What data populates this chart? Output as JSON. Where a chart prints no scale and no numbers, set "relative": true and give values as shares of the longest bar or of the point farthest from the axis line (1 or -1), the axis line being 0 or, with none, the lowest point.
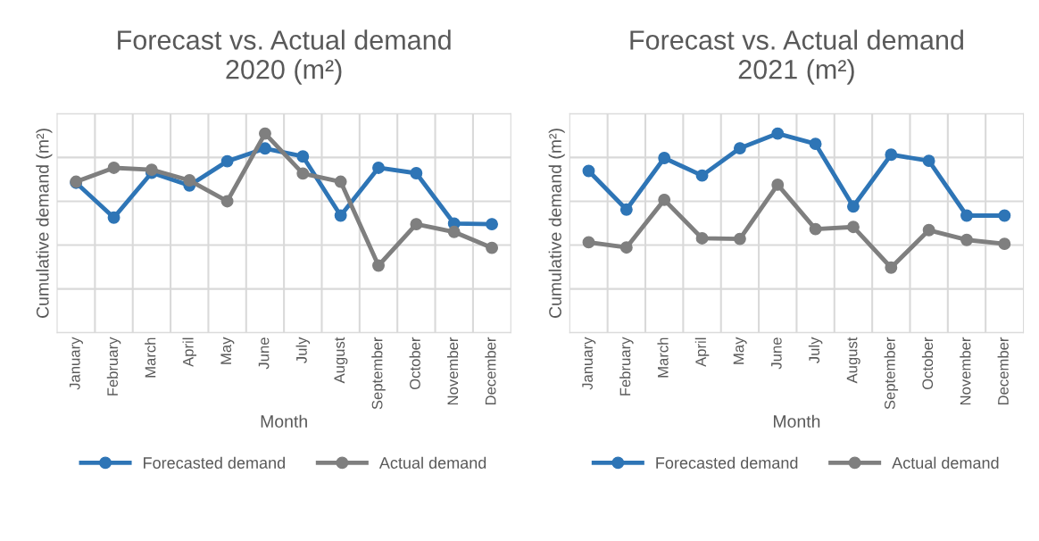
{
  "chart_data": [
    {
      "type": "line",
      "title": "Forecast vs. Actual demand\n2020 (m²)",
      "xlabel": "Month",
      "ylabel": "Cumulative demand (m²)",
      "relative": true,
      "grid": true,
      "legend": "bottom",
      "marker": "circle",
      "line_style": "solid",
      "categories": [
        "January",
        "February",
        "March",
        "April",
        "May",
        "June",
        "July",
        "August",
        "September",
        "October",
        "November",
        "December"
      ],
      "series": [
        {
          "name": "Forecasted demand",
          "color": "#2e75b6",
          "values": [
            0.753,
            0.578,
            0.803,
            0.739,
            0.861,
            0.925,
            0.885,
            0.588,
            0.828,
            0.801,
            0.548,
            0.545
          ]
        },
        {
          "name": "Actual demand",
          "color": "#7f7f7f",
          "values": [
            0.758,
            0.828,
            0.818,
            0.765,
            0.66,
            1,
            0.799,
            0.758,
            0.337,
            0.545,
            0.506,
            0.426
          ]
        }
      ]
    },
    {
      "type": "line",
      "title": "Forecast vs. Actual demand\n2021 (m²)",
      "xlabel": "Month",
      "ylabel": "Cumulative demand (m²)",
      "relative": true,
      "grid": true,
      "legend": "bottom",
      "marker": "circle",
      "line_style": "solid",
      "categories": [
        "January",
        "February",
        "March",
        "April",
        "May",
        "June",
        "July",
        "August",
        "September",
        "October",
        "November",
        "December"
      ],
      "series": [
        {
          "name": "Forecasted demand",
          "color": "#2e75b6",
          "values": [
            0.812,
            0.618,
            0.877,
            0.789,
            0.926,
            1,
            0.948,
            0.634,
            0.894,
            0.863,
            0.588,
            0.588
          ]
        },
        {
          "name": "Actual demand",
          "color": "#7f7f7f",
          "values": [
            0.454,
            0.428,
            0.667,
            0.474,
            0.471,
            0.743,
            0.52,
            0.531,
            0.327,
            0.515,
            0.466,
            0.446
          ]
        }
      ]
    }
  ]
}
